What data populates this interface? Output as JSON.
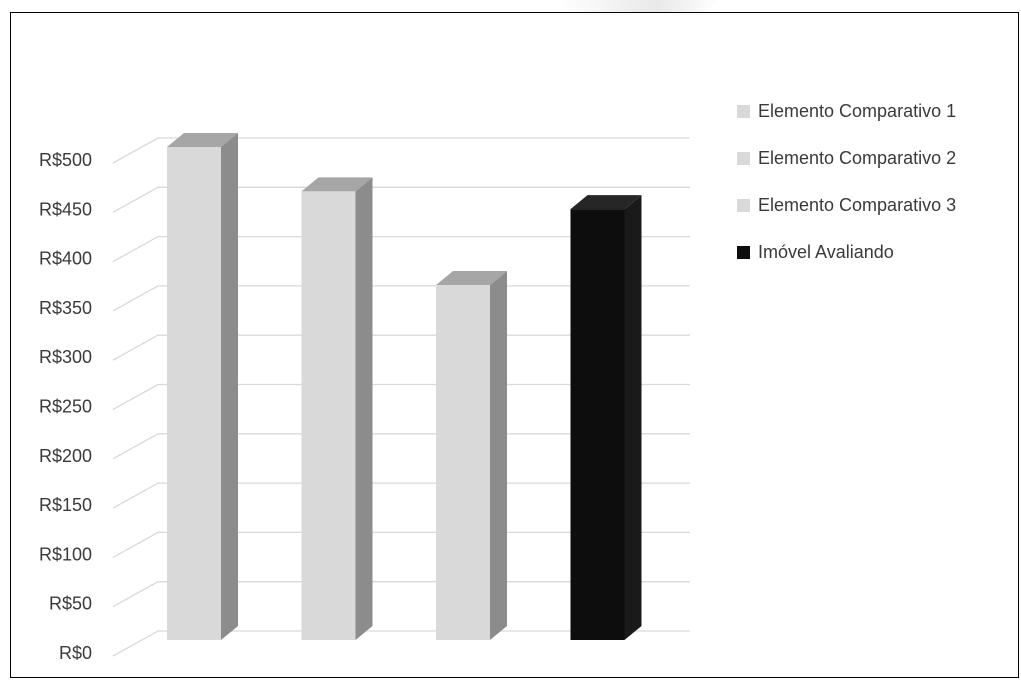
{
  "chart_data": {
    "type": "bar",
    "title": "",
    "xlabel": "",
    "ylabel": "",
    "ylim": [
      0,
      500
    ],
    "yticks": [
      "R$0",
      "R$50",
      "R$100",
      "R$150",
      "R$200",
      "R$250",
      "R$300",
      "R$350",
      "R$400",
      "R$450",
      "R$500"
    ],
    "grid": true,
    "legend_position": "right",
    "bars": [
      {
        "name": "Elemento Comparativo 1",
        "value": 500,
        "color": "#d9d9d9",
        "side": "#8c8c8c",
        "top": "#a6a6a6"
      },
      {
        "name": "Elemento Comparativo 2",
        "value": 455,
        "color": "#d9d9d9",
        "side": "#8c8c8c",
        "top": "#a6a6a6"
      },
      {
        "name": "Elemento Comparativo 3",
        "value": 360,
        "color": "#d9d9d9",
        "side": "#8c8c8c",
        "top": "#a6a6a6"
      },
      {
        "name": "Imóvel Avaliando",
        "value": 437,
        "color": "#0d0d0d",
        "side": "#1a1a1a",
        "top": "#262626"
      }
    ]
  }
}
